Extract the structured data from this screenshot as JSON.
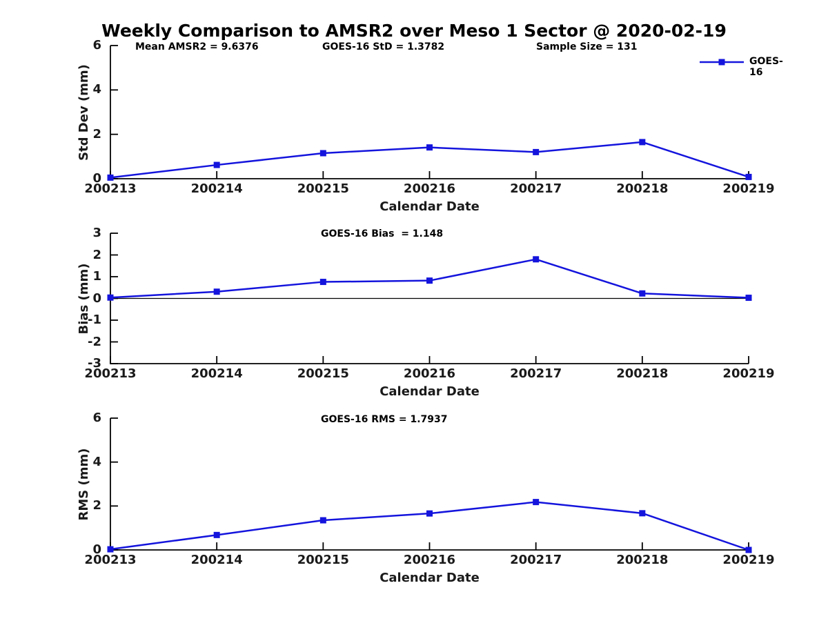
{
  "chart_data": {
    "type": "line",
    "title": "Weekly Comparison to AMSR2 over Meso 1 Sector @ 2020-02-19",
    "x_categories": [
      "200213",
      "200214",
      "200215",
      "200216",
      "200217",
      "200218",
      "200219"
    ],
    "xlabel": "Calendar Date",
    "legend": {
      "label": "GOES-16",
      "color": "#1414dd",
      "marker": "filled-square",
      "position": "top-right"
    },
    "grid": false,
    "subplots": [
      {
        "name": "std-dev",
        "ylabel": "Std Dev (mm)",
        "ylim": [
          0,
          6
        ],
        "yticks": [
          6,
          4,
          2,
          0
        ],
        "values": [
          0.05,
          0.62,
          1.15,
          1.41,
          1.2,
          1.65,
          0.08
        ],
        "zero_line": false,
        "annotations": [
          "Mean AMSR2 = 9.6376",
          "GOES-16 StD = 1.3782",
          "Sample Size = 131"
        ]
      },
      {
        "name": "bias",
        "ylabel": "Bias (mm)",
        "ylim": [
          -3,
          3
        ],
        "yticks": [
          3,
          2,
          1,
          0,
          -1,
          -2,
          -3
        ],
        "values": [
          0.04,
          0.31,
          0.76,
          0.82,
          1.8,
          0.23,
          0.03
        ],
        "zero_line": true,
        "annotations": [
          "GOES-16 Bias  = 1.148"
        ]
      },
      {
        "name": "rms",
        "ylabel": "RMS (mm)",
        "ylim": [
          0,
          6
        ],
        "yticks": [
          6,
          4,
          2,
          0
        ],
        "values": [
          0.03,
          0.68,
          1.35,
          1.66,
          2.18,
          1.67,
          0.0
        ],
        "zero_line": false,
        "annotations": [
          "GOES-16 RMS = 1.7937"
        ]
      }
    ]
  }
}
